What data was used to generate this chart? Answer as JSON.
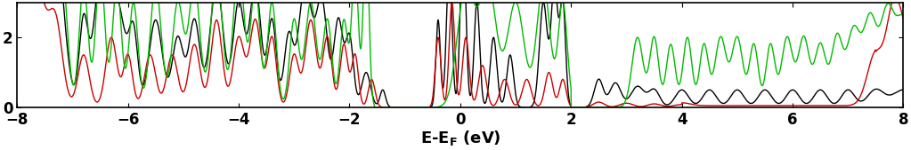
{
  "xlim": [
    -8,
    8
  ],
  "ylim": [
    0,
    3.0
  ],
  "xticks": [
    -8,
    -6,
    -4,
    -2,
    0,
    2,
    4,
    6,
    8
  ],
  "yticks": [
    0,
    2
  ],
  "background_color": "#ffffff",
  "line_colors": [
    "black",
    "#cc0000",
    "#00bb00"
  ],
  "xlabel_fontsize": 13,
  "tick_fontsize": 12
}
